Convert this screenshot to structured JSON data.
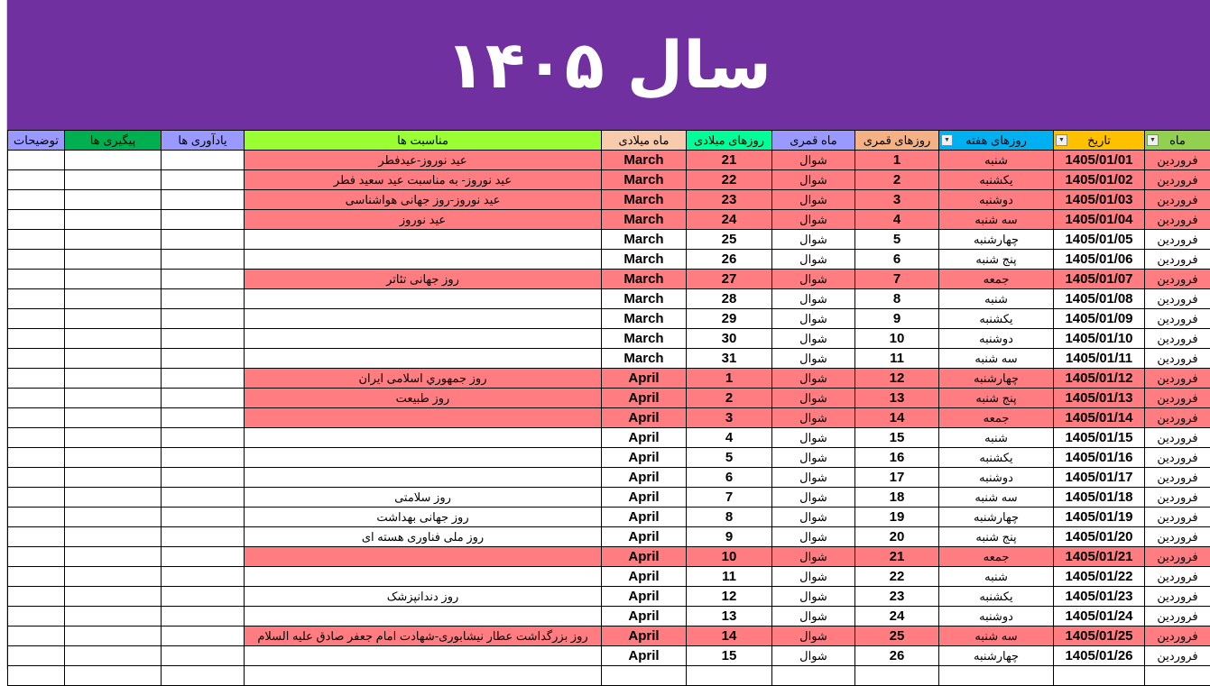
{
  "title": "سال ۱۴۰۵",
  "colors": {
    "banner": "#7030A0",
    "holiday_row": "#FF7C80"
  },
  "headers": [
    {
      "label": "توضیحات",
      "color": "#9999FF"
    },
    {
      "label": "پیگیری ها",
      "color": "#00B050"
    },
    {
      "label": "یادآوری ها",
      "color": "#9999FF"
    },
    {
      "label": "مناسبت ها",
      "color": "#99FF33"
    },
    {
      "label": "ماه میلادی",
      "color": "#F8CBAD"
    },
    {
      "label": "روزهای میلادی",
      "color": "#00FF99"
    },
    {
      "label": "ماه قمری",
      "color": "#9999FF"
    },
    {
      "label": "روزهای قمری",
      "color": "#F4B183"
    },
    {
      "label": "روزهای هفته",
      "color": "#00B0F0",
      "filter": true
    },
    {
      "label": "تاریخ",
      "color": "#FFC000",
      "filter": true
    },
    {
      "label": "ماه",
      "color": "#92D050",
      "filter": true
    }
  ],
  "rows": [
    {
      "holiday": true,
      "occasion": "عید نوروز-عیدفطر",
      "gmonth": "March",
      "gday": "21",
      "hmonth": "شوال",
      "hday": "1",
      "weekday": "شنبه",
      "date": "1405/01/01",
      "month": "فروردین"
    },
    {
      "holiday": true,
      "occasion": "عید نوروز- به مناسبت عید سعید فطر",
      "gmonth": "March",
      "gday": "22",
      "hmonth": "شوال",
      "hday": "2",
      "weekday": "یکشنبه",
      "date": "1405/01/02",
      "month": "فروردین"
    },
    {
      "holiday": true,
      "occasion": "عید نوروز-روز جهانی هواشناسی",
      "gmonth": "March",
      "gday": "23",
      "hmonth": "شوال",
      "hday": "3",
      "weekday": "دوشنبه",
      "date": "1405/01/03",
      "month": "فروردین"
    },
    {
      "holiday": true,
      "occasion": "عید نوروز",
      "gmonth": "March",
      "gday": "24",
      "hmonth": "شوال",
      "hday": "4",
      "weekday": "سه شنبه",
      "date": "1405/01/04",
      "month": "فروردین"
    },
    {
      "holiday": false,
      "occasion": "",
      "gmonth": "March",
      "gday": "25",
      "hmonth": "شوال",
      "hday": "5",
      "weekday": "چهارشنبه",
      "date": "1405/01/05",
      "month": "فروردین"
    },
    {
      "holiday": false,
      "occasion": "",
      "gmonth": "March",
      "gday": "26",
      "hmonth": "شوال",
      "hday": "6",
      "weekday": "پنج شنبه",
      "date": "1405/01/06",
      "month": "فروردین"
    },
    {
      "holiday": true,
      "occasion": "روز جهانی تئاتر",
      "gmonth": "March",
      "gday": "27",
      "hmonth": "شوال",
      "hday": "7",
      "weekday": "جمعه",
      "date": "1405/01/07",
      "month": "فروردین"
    },
    {
      "holiday": false,
      "occasion": "",
      "gmonth": "March",
      "gday": "28",
      "hmonth": "شوال",
      "hday": "8",
      "weekday": "شنبه",
      "date": "1405/01/08",
      "month": "فروردین"
    },
    {
      "holiday": false,
      "occasion": "",
      "gmonth": "March",
      "gday": "29",
      "hmonth": "شوال",
      "hday": "9",
      "weekday": "یکشنبه",
      "date": "1405/01/09",
      "month": "فروردین"
    },
    {
      "holiday": false,
      "occasion": "",
      "gmonth": "March",
      "gday": "30",
      "hmonth": "شوال",
      "hday": "10",
      "weekday": "دوشنبه",
      "date": "1405/01/10",
      "month": "فروردین"
    },
    {
      "holiday": false,
      "occasion": "",
      "gmonth": "March",
      "gday": "31",
      "hmonth": "شوال",
      "hday": "11",
      "weekday": "سه شنبه",
      "date": "1405/01/11",
      "month": "فروردین"
    },
    {
      "holiday": true,
      "occasion": "روز جمهوري اسلامی ایران",
      "gmonth": "April",
      "gday": "1",
      "hmonth": "شوال",
      "hday": "12",
      "weekday": "چهارشنبه",
      "date": "1405/01/12",
      "month": "فروردین"
    },
    {
      "holiday": true,
      "occasion": "روز طبیعت",
      "gmonth": "April",
      "gday": "2",
      "hmonth": "شوال",
      "hday": "13",
      "weekday": "پنج شنبه",
      "date": "1405/01/13",
      "month": "فروردین"
    },
    {
      "holiday": true,
      "occasion": "",
      "gmonth": "April",
      "gday": "3",
      "hmonth": "شوال",
      "hday": "14",
      "weekday": "جمعه",
      "date": "1405/01/14",
      "month": "فروردین"
    },
    {
      "holiday": false,
      "occasion": "",
      "gmonth": "April",
      "gday": "4",
      "hmonth": "شوال",
      "hday": "15",
      "weekday": "شنبه",
      "date": "1405/01/15",
      "month": "فروردین"
    },
    {
      "holiday": false,
      "occasion": "",
      "gmonth": "April",
      "gday": "5",
      "hmonth": "شوال",
      "hday": "16",
      "weekday": "یکشنبه",
      "date": "1405/01/16",
      "month": "فروردین"
    },
    {
      "holiday": false,
      "occasion": "",
      "gmonth": "April",
      "gday": "6",
      "hmonth": "شوال",
      "hday": "17",
      "weekday": "دوشنبه",
      "date": "1405/01/17",
      "month": "فروردین"
    },
    {
      "holiday": false,
      "occasion": "روز سلامتی",
      "gmonth": "April",
      "gday": "7",
      "hmonth": "شوال",
      "hday": "18",
      "weekday": "سه شنبه",
      "date": "1405/01/18",
      "month": "فروردین"
    },
    {
      "holiday": false,
      "occasion": "روز جهانی بهداشت",
      "gmonth": "April",
      "gday": "8",
      "hmonth": "شوال",
      "hday": "19",
      "weekday": "چهارشنبه",
      "date": "1405/01/19",
      "month": "فروردین"
    },
    {
      "holiday": false,
      "occasion": "روز ملی فناوری هسته ای",
      "gmonth": "April",
      "gday": "9",
      "hmonth": "شوال",
      "hday": "20",
      "weekday": "پنج شنبه",
      "date": "1405/01/20",
      "month": "فروردین"
    },
    {
      "holiday": true,
      "occasion": "",
      "gmonth": "April",
      "gday": "10",
      "hmonth": "شوال",
      "hday": "21",
      "weekday": "جمعه",
      "date": "1405/01/21",
      "month": "فروردین"
    },
    {
      "holiday": false,
      "occasion": "",
      "gmonth": "April",
      "gday": "11",
      "hmonth": "شوال",
      "hday": "22",
      "weekday": "شنبه",
      "date": "1405/01/22",
      "month": "فروردین"
    },
    {
      "holiday": false,
      "occasion": "روز دندانپزشک",
      "gmonth": "April",
      "gday": "12",
      "hmonth": "شوال",
      "hday": "23",
      "weekday": "یکشنبه",
      "date": "1405/01/23",
      "month": "فروردین"
    },
    {
      "holiday": false,
      "occasion": "",
      "gmonth": "April",
      "gday": "13",
      "hmonth": "شوال",
      "hday": "24",
      "weekday": "دوشنبه",
      "date": "1405/01/24",
      "month": "فروردین"
    },
    {
      "holiday": true,
      "occasion": "روز بزرگداشت عطار نیشابوری-شهادت امام جعفر صادق علیه السلام",
      "gmonth": "April",
      "gday": "14",
      "hmonth": "شوال",
      "hday": "25",
      "weekday": "سه شنبه",
      "date": "1405/01/25",
      "month": "فروردین"
    },
    {
      "holiday": false,
      "occasion": "",
      "gmonth": "April",
      "gday": "15",
      "hmonth": "شوال",
      "hday": "26",
      "weekday": "چهارشنبه",
      "date": "1405/01/26",
      "month": "فروردین"
    }
  ]
}
